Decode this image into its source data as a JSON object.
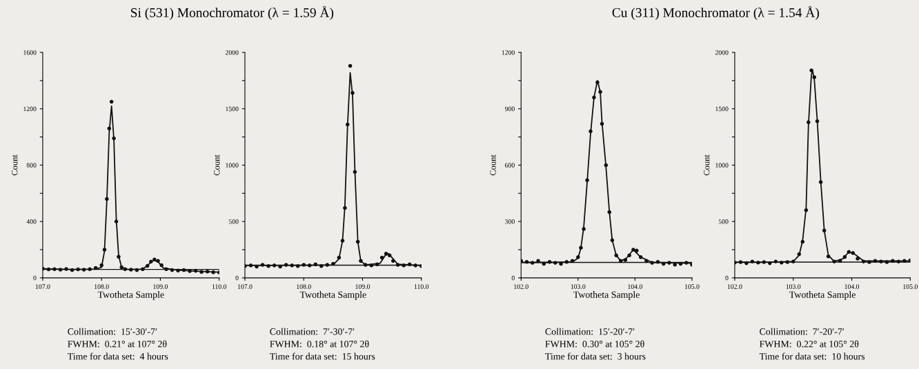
{
  "chart_data": [
    {
      "type": "scatter",
      "title": "Si (531) Monochromator (λ = 1.59 Å)",
      "xlabel": "Twotheta Sample",
      "ylabel": "Count",
      "xlim": [
        107.0,
        110.0
      ],
      "xticks": [
        {
          "value": 107,
          "label": "107.0"
        },
        {
          "value": 108,
          "label": "108.0"
        },
        {
          "value": 109,
          "label": "109.0"
        },
        {
          "value": 110,
          "label": "110.0"
        }
      ],
      "ylim": [
        0,
        1600
      ],
      "yticks": [
        0,
        {
          "value": 200,
          "label": null
        },
        400,
        {
          "value": 600,
          "label": null
        },
        800,
        {
          "value": 1000,
          "label": null
        },
        1200,
        {
          "value": 1400,
          "label": null
        },
        1600
      ],
      "grid": false,
      "legend": false,
      "marker": "circle",
      "series": [
        {
          "color": "#111111",
          "x": [
            107.0,
            107.1,
            107.2,
            107.3,
            107.4,
            107.5,
            107.6,
            107.7,
            107.8,
            107.9,
            108.0,
            108.05,
            108.09,
            108.13,
            108.17,
            108.21,
            108.25,
            108.29,
            108.34,
            108.4,
            108.5,
            108.6,
            108.7,
            108.78,
            108.84,
            108.9,
            108.96,
            109.02,
            109.1,
            109.2,
            109.3,
            109.4,
            109.5,
            109.6,
            109.7,
            109.8,
            109.9,
            110.0
          ],
          "values": [
            65,
            60,
            62,
            58,
            63,
            55,
            60,
            58,
            62,
            70,
            90,
            200,
            560,
            1060,
            1250,
            990,
            400,
            150,
            75,
            62,
            58,
            55,
            62,
            85,
            115,
            130,
            120,
            90,
            62,
            55,
            52,
            55,
            48,
            50,
            42,
            45,
            40,
            38
          ]
        },
        {
          "type": "line",
          "color": "#111111",
          "marker": "none",
          "x": [
            107.0,
            107.5,
            107.9,
            108.0,
            108.05,
            108.09,
            108.13,
            108.17,
            108.21,
            108.25,
            108.29,
            108.34,
            108.45,
            108.7,
            108.8,
            108.88,
            108.96,
            109.05,
            109.3,
            109.7,
            110.0
          ],
          "values": [
            65,
            60,
            62,
            75,
            190,
            550,
            1030,
            1220,
            980,
            420,
            160,
            75,
            60,
            62,
            95,
            125,
            115,
            70,
            55,
            45,
            40
          ]
        }
      ],
      "ref_lines": [
        {
          "axis": "y",
          "value": 60,
          "color": "#111111"
        }
      ],
      "annotations": [
        "Collimation:  15′-30′-7′",
        "FWHM:  0.21° at 107° 2θ",
        "Time for data set:  4 hours"
      ]
    },
    {
      "type": "scatter",
      "xlabel": "Twotheta Sample",
      "ylabel": "Count",
      "xlim": [
        107.0,
        110.0
      ],
      "xticks": [
        {
          "value": 107,
          "label": "107.0"
        },
        {
          "value": 108,
          "label": "108.0"
        },
        {
          "value": 109,
          "label": "109.0"
        },
        {
          "value": 110,
          "label": "110.0"
        }
      ],
      "ylim": [
        0,
        2000
      ],
      "yticks": [
        0,
        {
          "value": 250,
          "label": null
        },
        500,
        {
          "value": 750,
          "label": null
        },
        1000,
        {
          "value": 1250,
          "label": null
        },
        1500,
        {
          "value": 1750,
          "label": null
        },
        2000
      ],
      "grid": false,
      "legend": false,
      "marker": "circle",
      "series": [
        {
          "color": "#111111",
          "x": [
            107.0,
            107.1,
            107.2,
            107.3,
            107.4,
            107.5,
            107.6,
            107.7,
            107.8,
            107.9,
            108.0,
            108.1,
            108.2,
            108.3,
            108.4,
            108.5,
            108.6,
            108.66,
            108.7,
            108.745,
            108.79,
            108.83,
            108.87,
            108.92,
            108.97,
            109.05,
            109.15,
            109.25,
            109.33,
            109.4,
            109.46,
            109.52,
            109.6,
            109.7,
            109.8,
            109.9,
            110.0
          ],
          "values": [
            105,
            110,
            100,
            115,
            105,
            110,
            100,
            115,
            110,
            105,
            115,
            110,
            120,
            105,
            115,
            125,
            180,
            330,
            620,
            1360,
            1880,
            1640,
            940,
            320,
            150,
            115,
            110,
            120,
            180,
            215,
            200,
            150,
            115,
            110,
            120,
            110,
            105
          ]
        },
        {
          "type": "line",
          "color": "#111111",
          "marker": "none",
          "x": [
            107.0,
            107.5,
            108.0,
            108.5,
            108.6,
            108.66,
            108.7,
            108.745,
            108.79,
            108.83,
            108.87,
            108.92,
            108.97,
            109.05,
            109.3,
            109.38,
            109.44,
            109.5,
            109.6,
            110.0
          ],
          "values": [
            110,
            110,
            112,
            115,
            170,
            330,
            640,
            1350,
            1820,
            1620,
            950,
            320,
            150,
            115,
            130,
            195,
            215,
            180,
            120,
            110
          ]
        }
      ],
      "ref_lines": [
        {
          "axis": "y",
          "value": 112,
          "color": "#111111"
        }
      ],
      "annotations": [
        "Collimation:  7′-30′-7′",
        "FWHM:  0.18° at 107° 2θ",
        "Time for data set:  15 hours"
      ]
    },
    {
      "type": "scatter",
      "title": "Cu (311) Monochromator (λ = 1.54 Å)",
      "xlabel": "Twotheta Sample",
      "ylabel": "Count",
      "xlim": [
        102.0,
        105.0
      ],
      "xticks": [
        {
          "value": 102,
          "label": "102.0"
        },
        {
          "value": 103,
          "label": "103.0"
        },
        {
          "value": 104,
          "label": "104.0"
        },
        {
          "value": 105,
          "label": "105.0"
        }
      ],
      "ylim": [
        0,
        1200
      ],
      "yticks": [
        0,
        {
          "value": 150,
          "label": null
        },
        300,
        {
          "value": 450,
          "label": null
        },
        600,
        {
          "value": 750,
          "label": null
        },
        900,
        {
          "value": 1050,
          "label": null
        },
        1200
      ],
      "grid": false,
      "legend": false,
      "marker": "circle",
      "series": [
        {
          "color": "#111111",
          "x": [
            102.0,
            102.1,
            102.2,
            102.3,
            102.4,
            102.5,
            102.6,
            102.7,
            102.8,
            102.9,
            103.0,
            103.05,
            103.1,
            103.16,
            103.22,
            103.28,
            103.34,
            103.39,
            103.42,
            103.49,
            103.55,
            103.6,
            103.67,
            103.75,
            103.83,
            103.9,
            103.97,
            104.03,
            104.1,
            104.2,
            104.3,
            104.4,
            104.5,
            104.6,
            104.7,
            104.8,
            104.9,
            105.0
          ],
          "values": [
            90,
            85,
            80,
            90,
            75,
            85,
            80,
            75,
            85,
            90,
            110,
            160,
            260,
            520,
            780,
            960,
            1040,
            990,
            820,
            600,
            350,
            200,
            120,
            90,
            95,
            120,
            150,
            145,
            110,
            90,
            80,
            85,
            75,
            80,
            70,
            75,
            80,
            70
          ]
        },
        {
          "type": "line",
          "color": "#111111",
          "marker": "none",
          "x": [
            102.0,
            102.5,
            102.9,
            103.0,
            103.05,
            103.1,
            103.16,
            103.22,
            103.28,
            103.34,
            103.39,
            103.42,
            103.49,
            103.55,
            103.6,
            103.67,
            103.75,
            103.85,
            103.97,
            104.1,
            104.3,
            105.0
          ],
          "values": [
            82,
            82,
            85,
            105,
            160,
            270,
            510,
            770,
            960,
            1050,
            990,
            830,
            590,
            350,
            200,
            120,
            90,
            105,
            150,
            110,
            82,
            78
          ]
        }
      ],
      "ref_lines": [
        {
          "axis": "y",
          "value": 82,
          "color": "#111111"
        }
      ],
      "annotations": [
        "Collimation:  15′-20′-7′",
        "FWHM:  0.30° at 105° 2θ",
        "Time for data set:  3 hours"
      ]
    },
    {
      "type": "scatter",
      "xlabel": "Twotheta Sample",
      "ylabel": "Count",
      "xlim": [
        102.0,
        105.0
      ],
      "xticks": [
        {
          "value": 102,
          "label": "102.0"
        },
        {
          "value": 103,
          "label": "103.0"
        },
        {
          "value": 104,
          "label": "104.0"
        },
        {
          "value": 105,
          "label": "105.0"
        }
      ],
      "ylim": [
        0,
        2000
      ],
      "yticks": [
        0,
        {
          "value": 250,
          "label": null
        },
        500,
        {
          "value": 750,
          "label": null
        },
        1000,
        {
          "value": 1250,
          "label": null
        },
        1500,
        {
          "value": 1750,
          "label": null
        },
        2000
      ],
      "grid": false,
      "legend": false,
      "marker": "circle",
      "series": [
        {
          "color": "#111111",
          "x": [
            102.0,
            102.1,
            102.2,
            102.3,
            102.4,
            102.5,
            102.6,
            102.7,
            102.8,
            102.9,
            103.0,
            103.1,
            103.16,
            103.22,
            103.26,
            103.31,
            103.36,
            103.41,
            103.47,
            103.53,
            103.6,
            103.7,
            103.8,
            103.88,
            103.95,
            104.02,
            104.1,
            104.2,
            104.3,
            104.4,
            104.5,
            104.6,
            104.7,
            104.8,
            104.9,
            105.0
          ],
          "values": [
            135,
            140,
            130,
            145,
            135,
            140,
            130,
            145,
            135,
            140,
            145,
            210,
            320,
            600,
            1380,
            1840,
            1780,
            1390,
            850,
            420,
            190,
            145,
            150,
            185,
            230,
            220,
            170,
            145,
            140,
            150,
            145,
            140,
            150,
            145,
            150,
            155
          ]
        },
        {
          "type": "line",
          "color": "#111111",
          "marker": "none",
          "x": [
            102.0,
            102.5,
            103.0,
            103.1,
            103.16,
            103.22,
            103.26,
            103.31,
            103.33,
            103.36,
            103.41,
            103.47,
            103.53,
            103.6,
            103.7,
            103.85,
            103.95,
            104.05,
            104.2,
            105.0
          ],
          "values": [
            138,
            138,
            145,
            200,
            330,
            620,
            1360,
            1800,
            1840,
            1760,
            1400,
            860,
            420,
            200,
            145,
            170,
            230,
            210,
            150,
            150
          ]
        }
      ],
      "ref_lines": [
        {
          "axis": "y",
          "value": 140,
          "color": "#111111"
        }
      ],
      "annotations": [
        "Collimation:  7′-20′-7′",
        "FWHM:  0.22° at 105° 2θ",
        "Time for data set:  10 hours"
      ]
    }
  ]
}
